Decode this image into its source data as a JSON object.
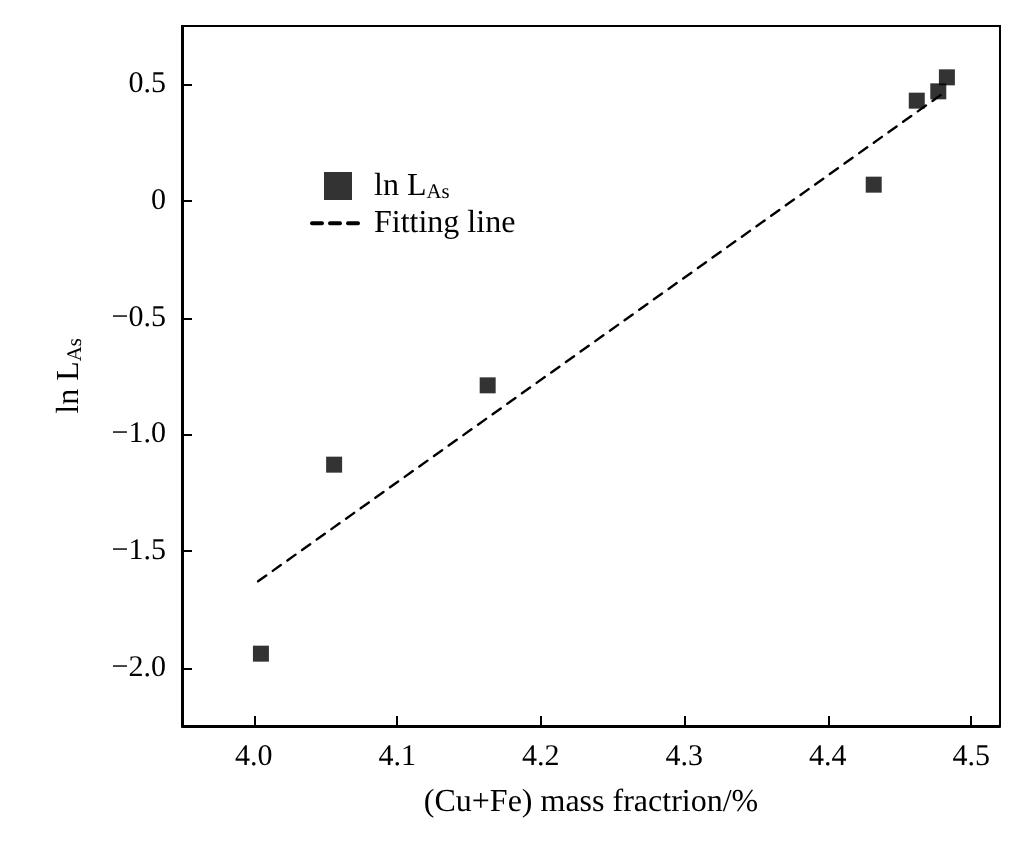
{
  "chart_data": {
    "type": "scatter",
    "xlabel": "(Cu+Fe) mass fractrion/%",
    "ylabel": "ln L$_{As}$",
    "xlim": [
      3.95,
      4.52
    ],
    "ylim": [
      -2.25,
      0.75
    ],
    "xticks": [
      {
        "value": 4,
        "label": "4.0"
      },
      4.1,
      4.2,
      4.3,
      4.4,
      4.5
    ],
    "yticks": [
      {
        "value": -2,
        "label": "−2.0"
      },
      {
        "value": -1.5,
        "label": "−1.5"
      },
      {
        "value": -1,
        "label": "−1.0"
      },
      {
        "value": -0.5,
        "label": "−0.5"
      },
      0,
      0.5
    ],
    "grid": false,
    "legend": "top left",
    "series": [
      {
        "name": "ln L$_{As}$",
        "type": "scatter",
        "marker": "square",
        "color": "#000000",
        "x": [
          4.005,
          4.056,
          4.163,
          4.432,
          4.462,
          4.477,
          4.483
        ],
        "values": [
          -1.94,
          -1.13,
          -0.79,
          0.07,
          0.43,
          0.47,
          0.53
        ]
      },
      {
        "name": "Fitting line",
        "type": "line",
        "marker": "none",
        "line_style": "dashed",
        "color": "#000000",
        "x": [
          4.003,
          4.48
        ],
        "values": [
          -1.63,
          0.46
        ]
      }
    ]
  }
}
